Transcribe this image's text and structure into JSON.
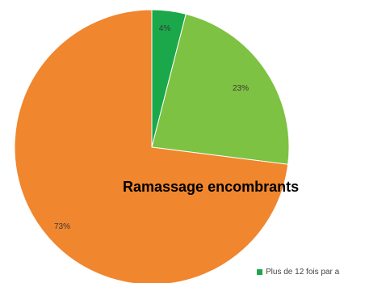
{
  "chart_data": {
    "type": "pie",
    "title": "Ramassage encombrants",
    "slices": [
      {
        "label": "4%",
        "value": 4,
        "color": "#1aa84b"
      },
      {
        "label": "23%",
        "value": 23,
        "color": "#7dc242"
      },
      {
        "label": "73%",
        "value": 73,
        "color": "#f0862e"
      }
    ],
    "start_angle_deg": 0,
    "legend": {
      "placement": "bottom-right",
      "entries": [
        {
          "label": "Plus de 12 fois par a",
          "color": "#1aa84b"
        }
      ]
    }
  }
}
